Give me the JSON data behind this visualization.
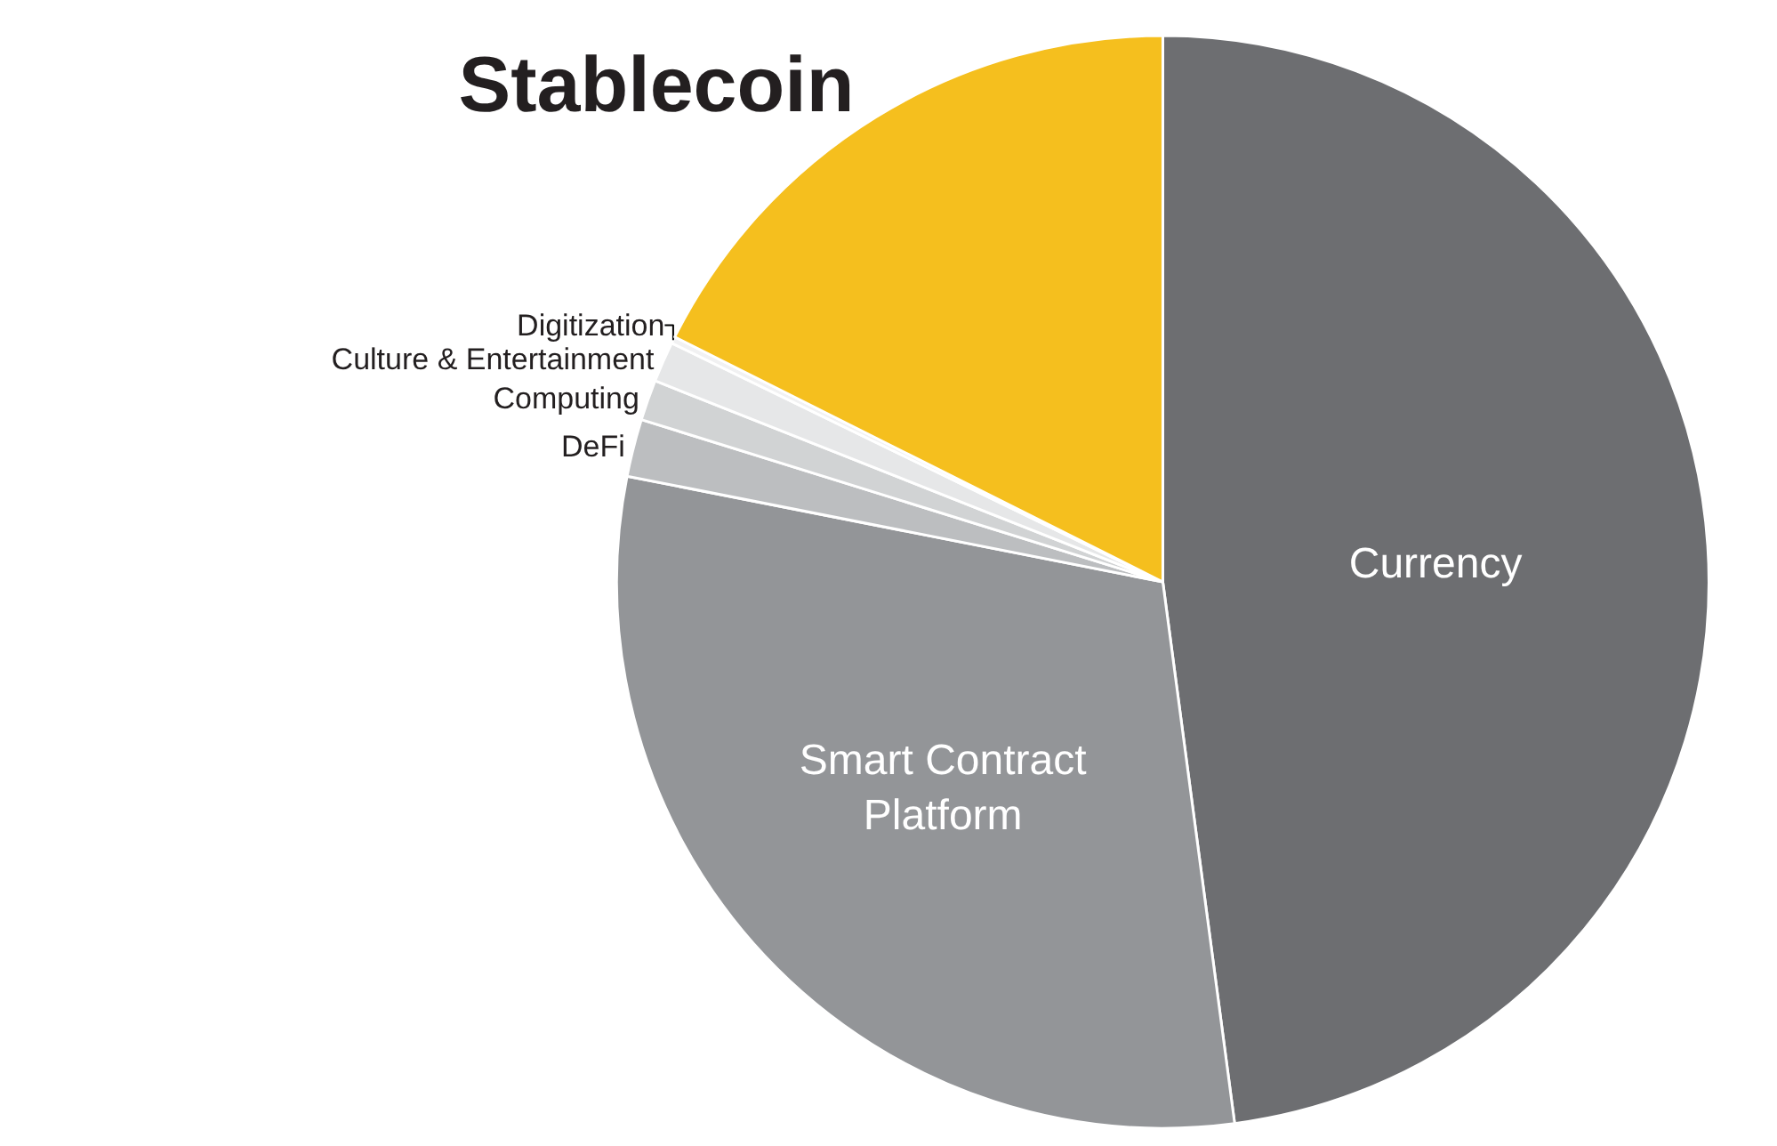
{
  "chart_data": {
    "type": "pie",
    "categories": [
      "Currency",
      "Smart Contract Platform",
      "DeFi",
      "Computing",
      "Culture & Entertainment",
      "Digitization",
      "Stablecoin"
    ],
    "values": [
      47.9,
      30.2,
      1.7,
      1.2,
      1.2,
      0.2,
      17.6
    ],
    "colors": [
      "#6d6e71",
      "#939598",
      "#bcbec0",
      "#d1d3d4",
      "#e6e7e8",
      "#f1f1f2",
      "#f5bf1e"
    ],
    "legend": false
  }
}
